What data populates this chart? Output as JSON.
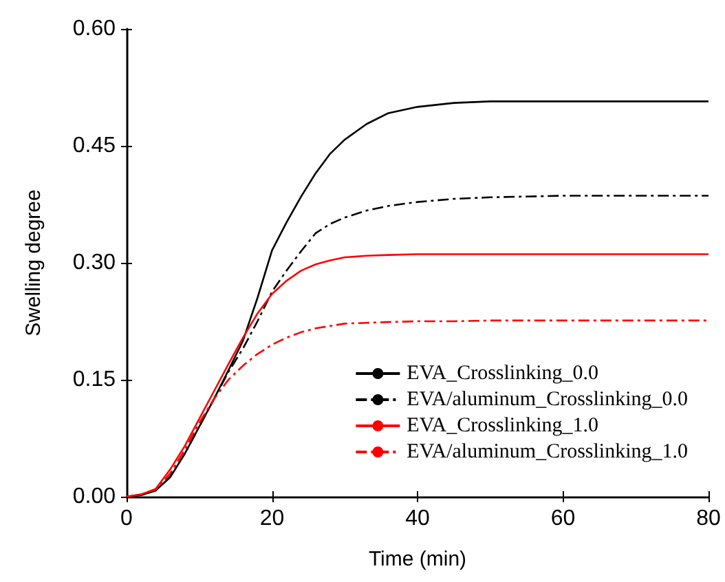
{
  "chart_data": {
    "type": "line",
    "xlabel": "Time (min)",
    "ylabel": "Swelling degree",
    "x": [
      0,
      2,
      4,
      6,
      8,
      10,
      12,
      14,
      16,
      18,
      20,
      22,
      24,
      26,
      28,
      30,
      33,
      36,
      40,
      45,
      50,
      60,
      70,
      80
    ],
    "series": [
      {
        "name": "EVA_Crosslinking_0.0",
        "color": "#000000",
        "line_style": "solid",
        "values": [
          0,
          0.002,
          0.008,
          0.025,
          0.055,
          0.09,
          0.125,
          0.162,
          0.2,
          0.255,
          0.316,
          0.352,
          0.385,
          0.415,
          0.44,
          0.458,
          0.478,
          0.492,
          0.5,
          0.505,
          0.507,
          0.507,
          0.507,
          0.507
        ]
      },
      {
        "name": "EVA/aluminum_Crosslinking_0.0",
        "color": "#000000",
        "line_style": "dashdot",
        "values": [
          0,
          0.002,
          0.008,
          0.026,
          0.055,
          0.09,
          0.125,
          0.16,
          0.19,
          0.225,
          0.263,
          0.29,
          0.315,
          0.338,
          0.35,
          0.358,
          0.367,
          0.373,
          0.378,
          0.382,
          0.384,
          0.386,
          0.386,
          0.386
        ]
      },
      {
        "name": "EVA_Crosslinking_1.0",
        "color": "#ff0000",
        "line_style": "solid",
        "values": [
          0,
          0.003,
          0.01,
          0.035,
          0.065,
          0.1,
          0.135,
          0.17,
          0.204,
          0.235,
          0.26,
          0.277,
          0.29,
          0.298,
          0.303,
          0.307,
          0.309,
          0.31,
          0.311,
          0.311,
          0.311,
          0.311,
          0.311,
          0.311
        ]
      },
      {
        "name": "EVA/aluminum_Crosslinking_1.0",
        "color": "#ff0000",
        "line_style": "dashdot",
        "values": [
          0,
          0.003,
          0.009,
          0.03,
          0.06,
          0.095,
          0.125,
          0.15,
          0.168,
          0.183,
          0.195,
          0.204,
          0.211,
          0.216,
          0.219,
          0.222,
          0.223,
          0.224,
          0.225,
          0.225,
          0.226,
          0.226,
          0.226,
          0.226
        ]
      }
    ],
    "xlim": [
      0,
      80
    ],
    "xticks": [
      0,
      20,
      40,
      60,
      80
    ],
    "ylim": [
      0,
      0.6
    ],
    "yticks": [
      {
        "value": 0,
        "label": "0.00"
      },
      {
        "value": 0.15,
        "label": "0.15"
      },
      {
        "value": 0.3,
        "label": "0.30"
      },
      {
        "value": 0.45,
        "label": "0.45"
      },
      {
        "value": 0.6,
        "label": "0.60"
      }
    ],
    "grid": false,
    "legend": "bottom right",
    "marker": "none"
  }
}
